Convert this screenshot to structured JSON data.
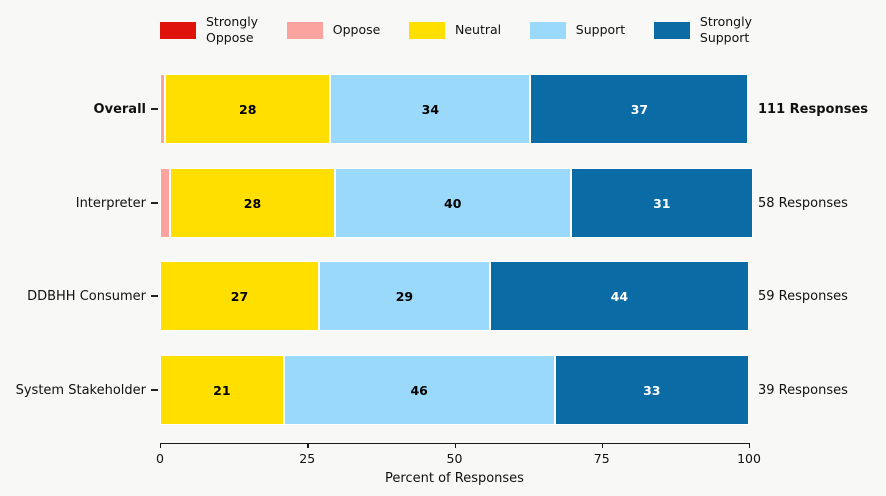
{
  "colors": {
    "background": "#f8f8f7",
    "axis": "#1a1a1a"
  },
  "chart_data": {
    "type": "bar",
    "orientation": "horizontal",
    "stacked": true,
    "title": "",
    "xlabel": "Percent of Responses",
    "ylabel": "",
    "xlim": [
      0,
      100
    ],
    "xticks": [
      "0",
      "25",
      "50",
      "75",
      "100"
    ],
    "grid": false,
    "legend_position": "top",
    "categories": [
      "Overall",
      "Interpreter",
      "DDBHH Consumer",
      "System Stakeholder"
    ],
    "category_emphasis": [
      true,
      false,
      false,
      false
    ],
    "annotations": [
      "111 Responses",
      "58 Responses",
      "59 Responses",
      "39 Responses"
    ],
    "series": [
      {
        "name": "Strongly Oppose",
        "legend_label": "Strongly\nOppose",
        "color": "#e0130c",
        "label_color": "#ffffff",
        "values": [
          0,
          0,
          0,
          0
        ]
      },
      {
        "name": "Oppose",
        "legend_label": "Oppose",
        "color": "#fba49f",
        "label_color": "#000000",
        "values": [
          0.9,
          1.7,
          0,
          0
        ]
      },
      {
        "name": "Neutral",
        "legend_label": "Neutral",
        "color": "#ffdf00",
        "label_color": "#000000",
        "values": [
          28,
          28,
          27,
          21
        ]
      },
      {
        "name": "Support",
        "legend_label": "Support",
        "color": "#9bd9fb",
        "label_color": "#000000",
        "values": [
          34,
          40,
          29,
          46
        ]
      },
      {
        "name": "Strongly Support",
        "legend_label": "Strongly\nSupport",
        "color": "#0b6ba4",
        "label_color": "#ffffff",
        "values": [
          37,
          31,
          44,
          33
        ]
      }
    ],
    "bar_labels": [
      [
        null,
        null,
        "28",
        "34",
        "37"
      ],
      [
        null,
        null,
        "28",
        "40",
        "31"
      ],
      [
        null,
        null,
        "27",
        "29",
        "44"
      ],
      [
        null,
        null,
        "21",
        "46",
        "33"
      ]
    ]
  }
}
